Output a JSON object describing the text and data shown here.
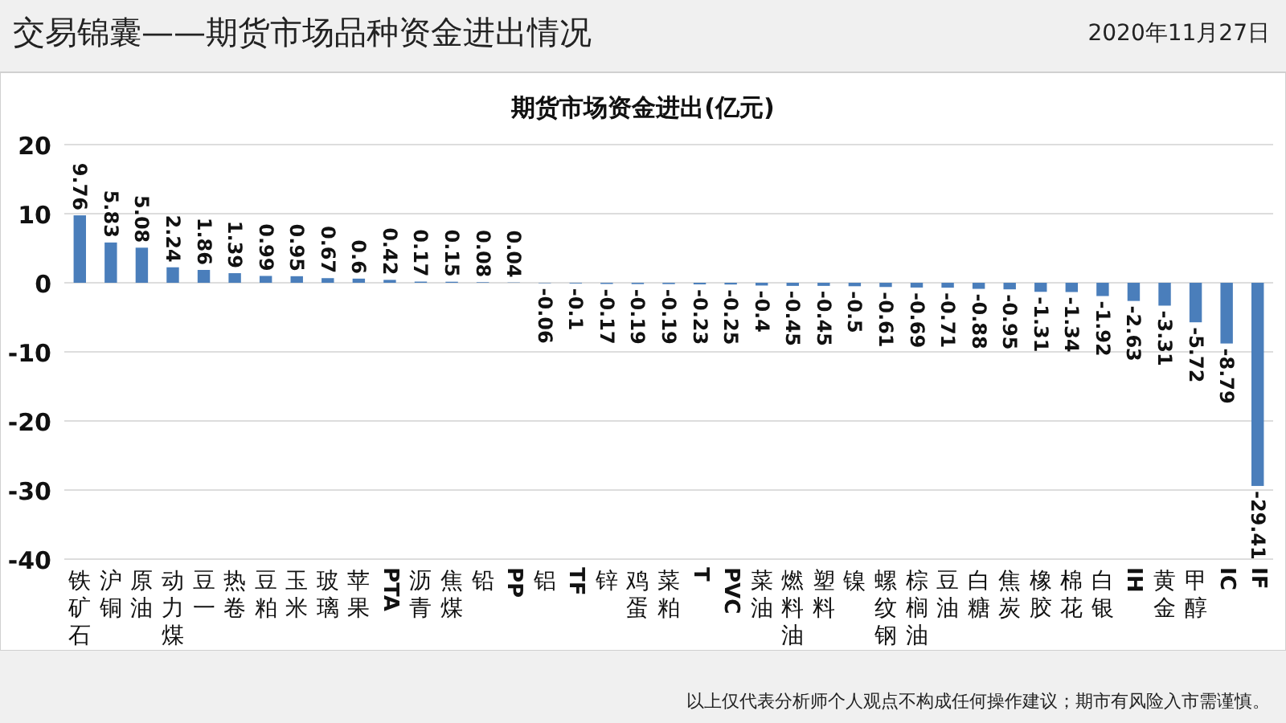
{
  "chart_data": {
    "type": "bar",
    "title": "交易锦囊——期货市场品种资金进出情况",
    "subtitle": "期货市场资金进出(亿元)",
    "annotations": [
      "2020年11月27日",
      "以上仅代表分析师个人观点不构成任何操作建议；期市有风险入市需谨慎。"
    ],
    "categories": [
      "铁矿石",
      "沪铜",
      "原油",
      "动力煤",
      "豆一",
      "热卷",
      "豆粕",
      "玉米",
      "玻璃",
      "苹果",
      "PTA",
      "沥青",
      "焦煤",
      "铅",
      "PP",
      "铝",
      "TF",
      "锌",
      "鸡蛋",
      "菜粕",
      "T",
      "PVC",
      "菜油",
      "燃料油",
      "塑料",
      "镍",
      "螺纹钢",
      "棕榈油",
      "豆油",
      "白糖",
      "焦炭",
      "橡胶",
      "棉花",
      "白银",
      "IH",
      "黄金",
      "甲醇",
      "IC",
      "IF"
    ],
    "values": [
      9.76,
      5.83,
      5.08,
      2.24,
      1.86,
      1.39,
      0.99,
      0.95,
      0.67,
      0.6,
      0.42,
      0.17,
      0.15,
      0.08,
      0.04,
      -0.06,
      -0.1,
      -0.17,
      -0.19,
      -0.19,
      -0.23,
      -0.25,
      -0.4,
      -0.45,
      -0.45,
      -0.5,
      -0.61,
      -0.69,
      -0.71,
      -0.88,
      -0.95,
      -1.31,
      -1.34,
      -1.92,
      -2.63,
      -3.31,
      -5.72,
      -8.79,
      -29.41
    ],
    "color": "#4a7ebb",
    "ylim": [
      -40,
      20
    ],
    "yticks": [
      -40,
      -30,
      -20,
      -10,
      0,
      10,
      20
    ],
    "grid": "y",
    "data_labels": true
  }
}
